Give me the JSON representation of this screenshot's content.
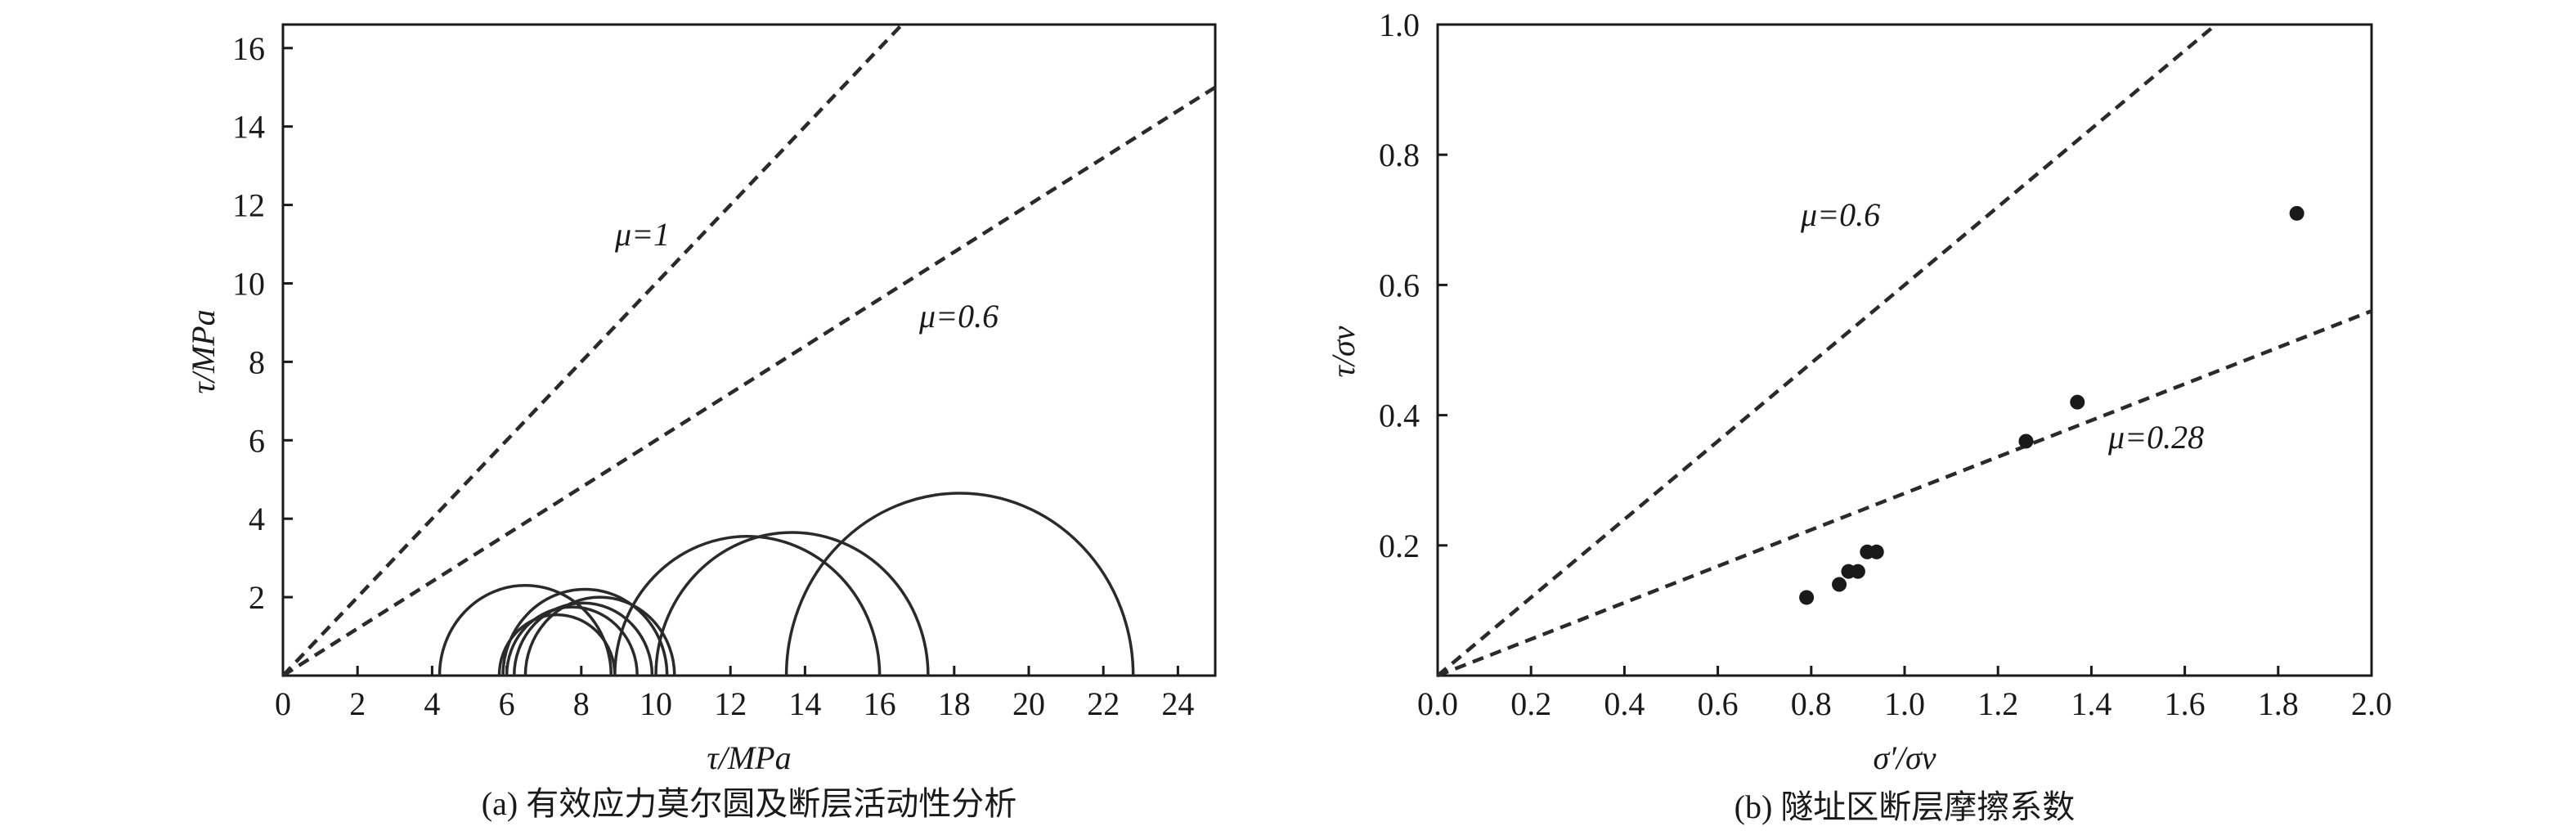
{
  "chart_data": [
    {
      "type": "mohr-circles",
      "xlabel": "τ/MPa",
      "ylabel": "τ/MPa",
      "caption": "(a) 有效应力莫尔圆及断层活动性分析",
      "xlim": [
        0,
        25
      ],
      "ylim": [
        0,
        16.6
      ],
      "x_ticks": [
        "0",
        "2",
        "4",
        "6",
        "8",
        "10",
        "12",
        "14",
        "16",
        "18",
        "20",
        "22",
        "24"
      ],
      "y_ticks": [
        "2",
        "4",
        "6",
        "8",
        "10",
        "12",
        "14",
        "16"
      ],
      "friction_lines": [
        {
          "label": "μ=1",
          "mu": 1.0
        },
        {
          "label": "μ=0.6",
          "mu": 0.6
        }
      ],
      "circles": [
        {
          "sigma3": 4.2,
          "sigma1": 8.8
        },
        {
          "sigma3": 5.8,
          "sigma1": 8.9
        },
        {
          "sigma3": 6.0,
          "sigma1": 9.5
        },
        {
          "sigma3": 6.2,
          "sigma1": 9.9
        },
        {
          "sigma3": 5.9,
          "sigma1": 10.3
        },
        {
          "sigma3": 6.5,
          "sigma1": 10.5
        },
        {
          "sigma3": 8.9,
          "sigma1": 16.0
        },
        {
          "sigma3": 10.0,
          "sigma1": 17.3
        },
        {
          "sigma3": 13.5,
          "sigma1": 22.8
        }
      ]
    },
    {
      "type": "scatter",
      "xlabel": "σ′/σv",
      "ylabel": "τ/σv",
      "caption": "(b) 隧址区断层摩擦系数",
      "xlim": [
        0,
        2.0
      ],
      "ylim": [
        0,
        1.0
      ],
      "x_ticks": [
        "0.0",
        "0.2",
        "0.4",
        "0.6",
        "0.8",
        "1.0",
        "1.2",
        "1.4",
        "1.6",
        "1.8",
        "2.0"
      ],
      "y_ticks": [
        "0.2",
        "0.4",
        "0.6",
        "0.8",
        "1.0"
      ],
      "friction_lines": [
        {
          "label": "μ=0.6",
          "mu": 0.6
        },
        {
          "label": "μ=0.28",
          "mu": 0.28
        }
      ],
      "points": [
        {
          "x": 0.79,
          "y": 0.12
        },
        {
          "x": 0.86,
          "y": 0.14
        },
        {
          "x": 0.88,
          "y": 0.16
        },
        {
          "x": 0.9,
          "y": 0.16
        },
        {
          "x": 0.92,
          "y": 0.19
        },
        {
          "x": 0.94,
          "y": 0.19
        },
        {
          "x": 1.26,
          "y": 0.36
        },
        {
          "x": 1.37,
          "y": 0.42
        },
        {
          "x": 1.84,
          "y": 0.71
        }
      ]
    }
  ]
}
